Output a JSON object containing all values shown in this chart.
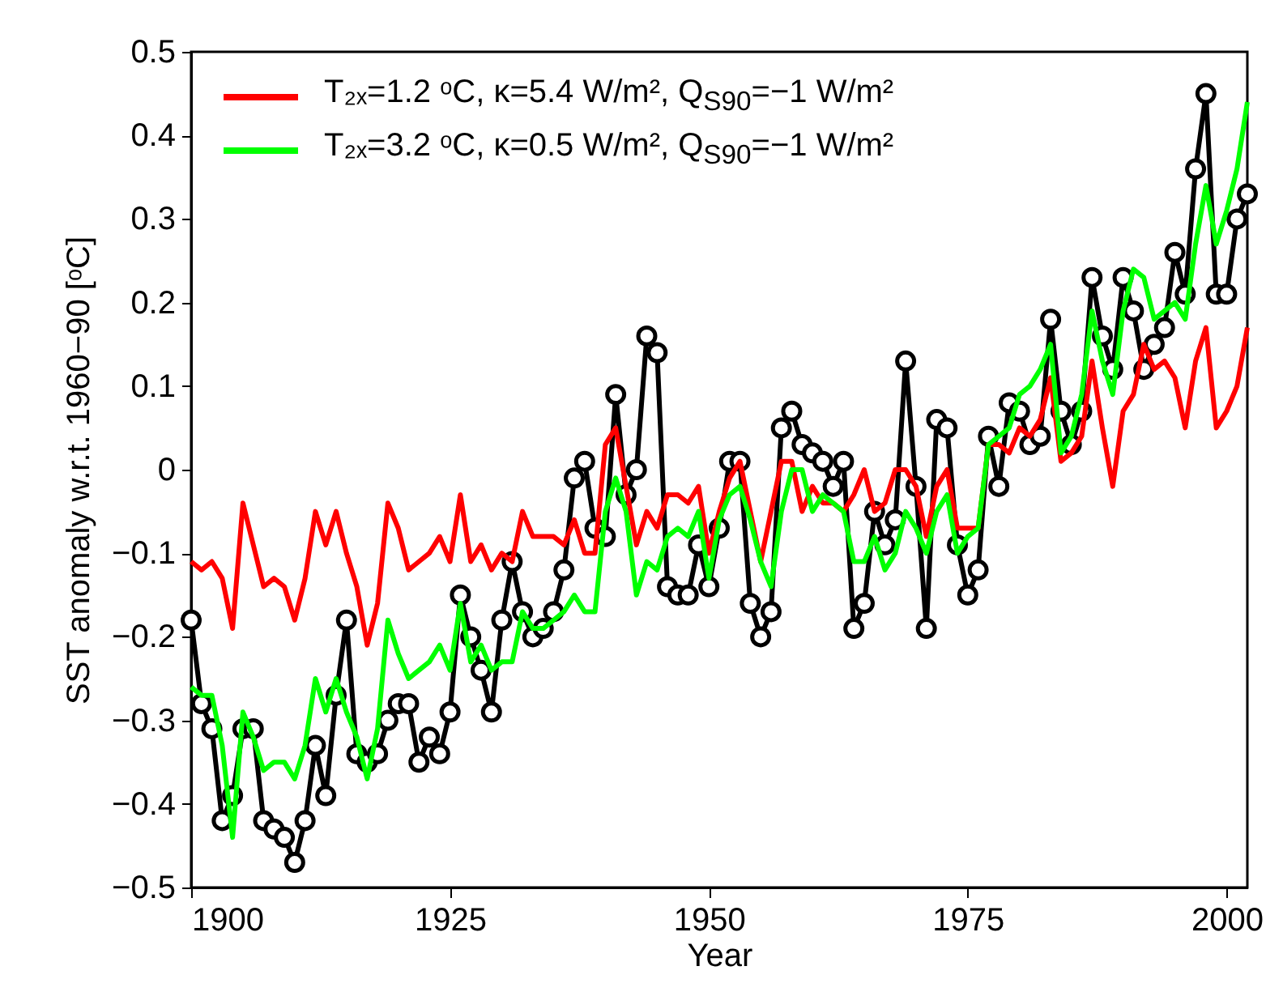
{
  "chart_data": {
    "type": "line",
    "xlabel": "Year",
    "ylabel": "SST anomaly w.r.t. 1960−90 [ᵒC]",
    "x": [
      1900,
      1901,
      1902,
      1903,
      1904,
      1905,
      1906,
      1907,
      1908,
      1909,
      1910,
      1911,
      1912,
      1913,
      1914,
      1915,
      1916,
      1917,
      1918,
      1919,
      1920,
      1921,
      1922,
      1923,
      1924,
      1925,
      1926,
      1927,
      1928,
      1929,
      1930,
      1931,
      1932,
      1933,
      1934,
      1935,
      1936,
      1937,
      1938,
      1939,
      1940,
      1941,
      1942,
      1943,
      1944,
      1945,
      1946,
      1947,
      1948,
      1949,
      1950,
      1951,
      1952,
      1953,
      1954,
      1955,
      1956,
      1957,
      1958,
      1959,
      1960,
      1961,
      1962,
      1963,
      1964,
      1965,
      1966,
      1967,
      1968,
      1969,
      1970,
      1971,
      1972,
      1973,
      1974,
      1975,
      1976,
      1977,
      1978,
      1979,
      1980,
      1981,
      1982,
      1983,
      1984,
      1985,
      1986,
      1987,
      1988,
      1989,
      1990,
      1991,
      1992,
      1993,
      1994,
      1995,
      1996,
      1997,
      1998,
      1999,
      2000,
      2001,
      2002
    ],
    "series": [
      {
        "color": "#000000",
        "marker": "circle",
        "values": [
          -0.18,
          -0.28,
          -0.31,
          -0.42,
          -0.39,
          -0.31,
          -0.31,
          -0.42,
          -0.43,
          -0.44,
          -0.47,
          -0.42,
          -0.33,
          -0.39,
          -0.27,
          -0.18,
          -0.34,
          -0.35,
          -0.34,
          -0.3,
          -0.28,
          -0.28,
          -0.35,
          -0.32,
          -0.34,
          -0.29,
          -0.15,
          -0.2,
          -0.24,
          -0.29,
          -0.18,
          -0.11,
          -0.17,
          -0.2,
          -0.19,
          -0.17,
          -0.12,
          -0.01,
          0.01,
          -0.07,
          -0.08,
          0.09,
          -0.03,
          0.0,
          0.16,
          0.14,
          -0.14,
          -0.15,
          -0.15,
          -0.09,
          -0.14,
          -0.07,
          0.01,
          0.01,
          -0.16,
          -0.2,
          -0.17,
          0.05,
          0.07,
          0.03,
          0.02,
          0.01,
          -0.02,
          0.01,
          -0.19,
          -0.16,
          -0.05,
          -0.09,
          -0.06,
          0.13,
          -0.02,
          -0.19,
          0.06,
          0.05,
          -0.09,
          -0.15,
          -0.12,
          0.04,
          -0.02,
          0.08,
          0.07,
          0.03,
          0.04,
          0.18,
          0.07,
          0.03,
          0.07,
          0.23,
          0.16,
          0.12,
          0.23,
          0.19,
          0.12,
          0.15,
          0.17,
          0.26,
          0.21,
          0.36,
          0.45,
          0.21,
          0.21,
          0.3,
          0.33
        ]
      },
      {
        "name": "T₂ₓ=1.2 ᵒC, κ=5.4 W/m², Q$_{S90}$=−1 W/m²",
        "color": "#ff0000",
        "values": [
          -0.11,
          -0.12,
          -0.11,
          -0.13,
          -0.19,
          -0.04,
          -0.09,
          -0.14,
          -0.13,
          -0.14,
          -0.18,
          -0.13,
          -0.05,
          -0.09,
          -0.05,
          -0.1,
          -0.14,
          -0.21,
          -0.16,
          -0.04,
          -0.07,
          -0.12,
          -0.11,
          -0.1,
          -0.08,
          -0.11,
          -0.03,
          -0.11,
          -0.09,
          -0.12,
          -0.1,
          -0.11,
          -0.05,
          -0.08,
          -0.08,
          -0.08,
          -0.09,
          -0.06,
          -0.1,
          -0.1,
          0.03,
          0.05,
          -0.02,
          -0.09,
          -0.05,
          -0.07,
          -0.03,
          -0.03,
          -0.04,
          -0.02,
          -0.1,
          -0.05,
          -0.01,
          0.01,
          -0.05,
          -0.11,
          -0.05,
          0.01,
          0.01,
          -0.05,
          -0.02,
          -0.04,
          -0.04,
          -0.05,
          -0.03,
          0.0,
          -0.05,
          -0.04,
          0.0,
          0.0,
          -0.02,
          -0.08,
          -0.02,
          0.0,
          -0.07,
          -0.07,
          -0.07,
          0.03,
          0.03,
          0.02,
          0.05,
          0.04,
          0.06,
          0.11,
          0.01,
          0.02,
          0.04,
          0.13,
          0.05,
          -0.02,
          0.07,
          0.09,
          0.15,
          0.12,
          0.13,
          0.11,
          0.05,
          0.13,
          0.17,
          0.05,
          0.07,
          0.1,
          0.17
        ]
      },
      {
        "name": "T₂ₓ=3.2 ᵒC, κ=0.5 W/m², Q$_{S90}$=−1 W/m²",
        "color": "#00ff00",
        "values": [
          -0.26,
          -0.27,
          -0.27,
          -0.33,
          -0.44,
          -0.29,
          -0.32,
          -0.36,
          -0.35,
          -0.35,
          -0.37,
          -0.33,
          -0.25,
          -0.29,
          -0.25,
          -0.29,
          -0.32,
          -0.37,
          -0.31,
          -0.18,
          -0.22,
          -0.25,
          -0.24,
          -0.23,
          -0.21,
          -0.24,
          -0.16,
          -0.23,
          -0.21,
          -0.24,
          -0.23,
          -0.23,
          -0.17,
          -0.19,
          -0.19,
          -0.18,
          -0.17,
          -0.15,
          -0.17,
          -0.17,
          -0.05,
          -0.01,
          -0.05,
          -0.15,
          -0.11,
          -0.12,
          -0.08,
          -0.07,
          -0.08,
          -0.05,
          -0.13,
          -0.06,
          -0.03,
          -0.02,
          -0.06,
          -0.11,
          -0.14,
          -0.05,
          0.0,
          0.0,
          -0.05,
          -0.03,
          -0.04,
          -0.05,
          -0.11,
          -0.11,
          -0.08,
          -0.12,
          -0.1,
          -0.05,
          -0.07,
          -0.1,
          -0.05,
          -0.03,
          -0.1,
          -0.08,
          -0.07,
          0.03,
          0.04,
          0.05,
          0.09,
          0.1,
          0.12,
          0.15,
          0.02,
          0.04,
          0.09,
          0.19,
          0.13,
          0.09,
          0.19,
          0.24,
          0.23,
          0.18,
          0.19,
          0.2,
          0.18,
          0.27,
          0.34,
          0.27,
          0.31,
          0.36,
          0.44
        ]
      }
    ],
    "xlim": [
      1900,
      2002
    ],
    "xticks": [
      1900,
      1925,
      1950,
      1975,
      2000
    ],
    "ylim": [
      -0.5,
      0.5
    ],
    "yticks": [
      -0.5,
      -0.4,
      -0.3,
      -0.2,
      -0.1,
      0,
      0.1,
      0.2,
      0.3,
      0.4,
      0.5
    ],
    "grid": false,
    "legend": "top left"
  }
}
